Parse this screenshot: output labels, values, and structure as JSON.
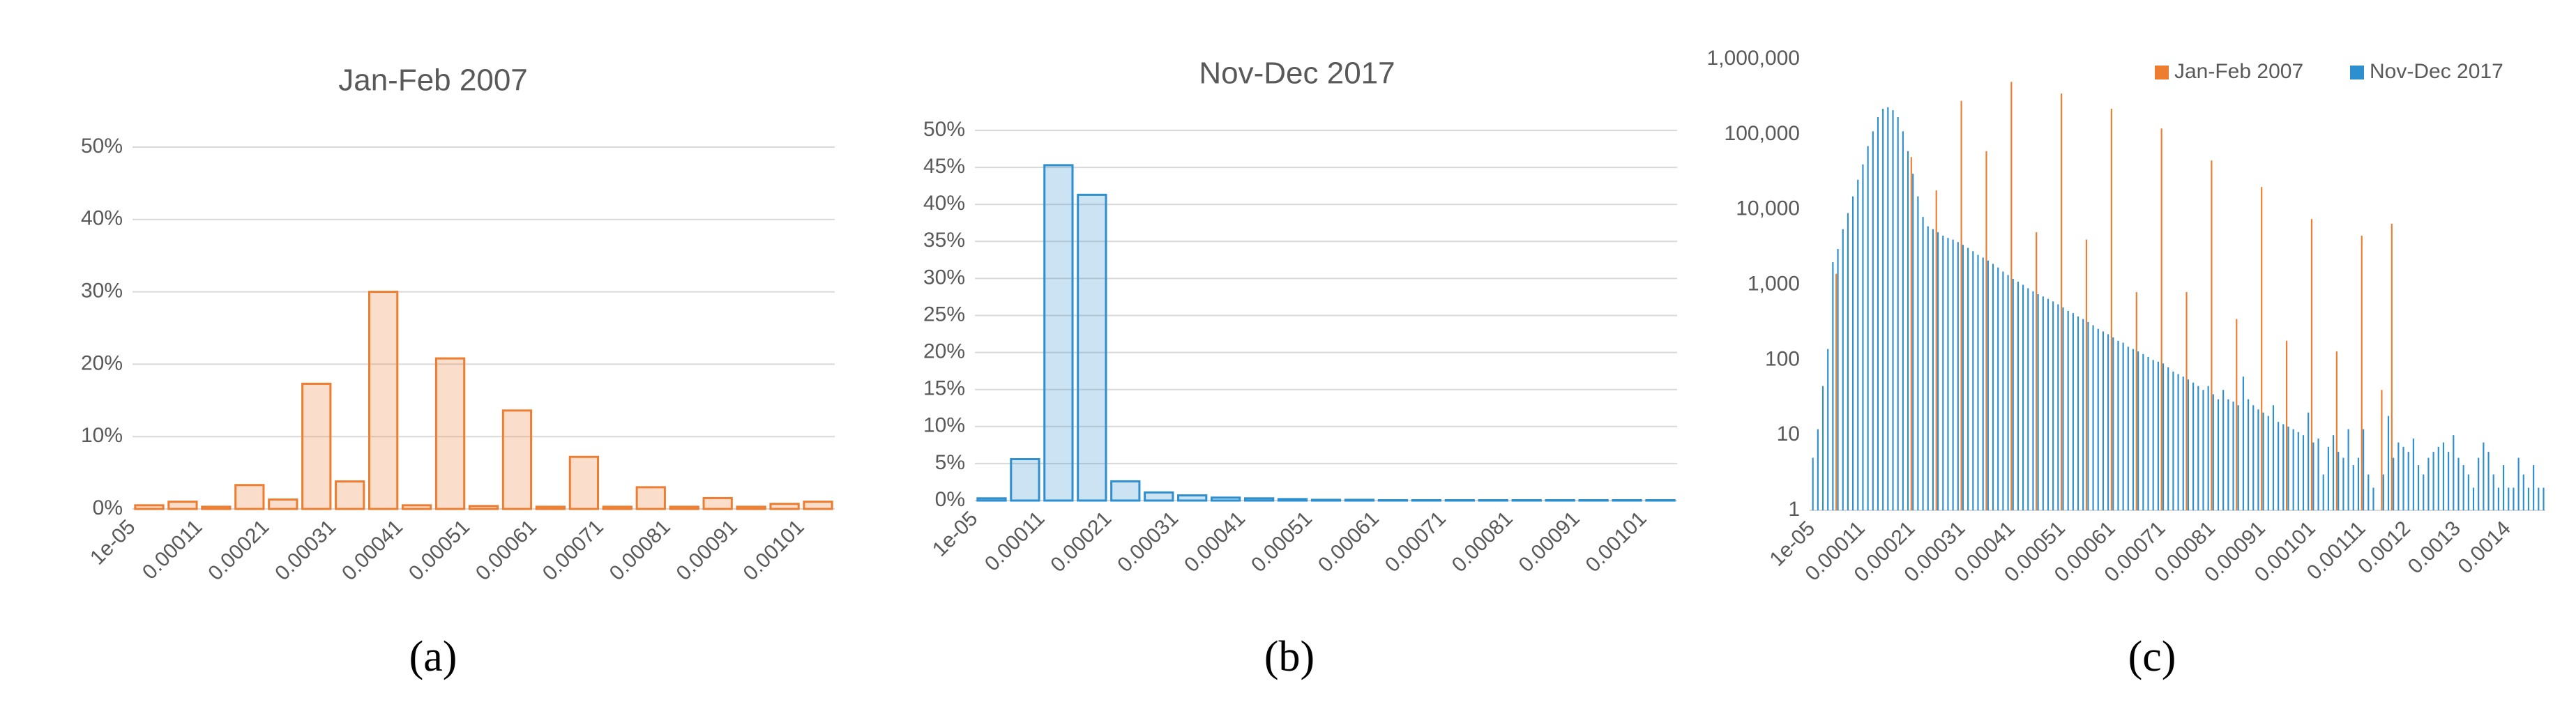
{
  "chart_data": [
    {
      "type": "bar",
      "title": "Jan-Feb 2007",
      "caption": "(a)",
      "color": "#ed7d31",
      "grid": true,
      "categories": [
        "1e-05",
        null,
        "0.00011",
        null,
        "0.00021",
        null,
        "0.00031",
        null,
        "0.00041",
        null,
        "0.00051",
        null,
        "0.00061",
        null,
        "0.00071",
        null,
        "0.00081",
        null,
        "0.00091",
        null,
        "0.00101"
      ],
      "values": [
        0.5,
        1.0,
        0.3,
        3.3,
        1.3,
        17.3,
        3.8,
        30,
        0.5,
        20.8,
        0.4,
        13.6,
        0.3,
        7.2,
        0.3,
        3,
        0.3,
        1.5,
        0.3,
        0.7,
        1.0
      ],
      "ylim": [
        0,
        50
      ],
      "yticks": [
        {
          "value": 0,
          "label": "0%"
        },
        {
          "value": 10,
          "label": "10%"
        },
        {
          "value": 20,
          "label": "20%"
        },
        {
          "value": 30,
          "label": "30%"
        },
        {
          "value": 40,
          "label": "40%"
        },
        {
          "value": 50,
          "label": "50%"
        }
      ]
    },
    {
      "type": "bar",
      "title": "Nov-Dec 2017",
      "caption": "(b)",
      "color": "#2e8fcf",
      "grid": true,
      "categories": [
        "1e-05",
        null,
        "0.00011",
        null,
        "0.00021",
        null,
        "0.00031",
        null,
        "0.00041",
        null,
        "0.00051",
        null,
        "0.00061",
        null,
        "0.00071",
        null,
        "0.00081",
        null,
        "0.00091",
        null,
        "0.00101"
      ],
      "values": [
        0.3,
        5.6,
        45.3,
        41.3,
        2.6,
        1.1,
        0.7,
        0.4,
        0.3,
        0.2,
        0.1,
        0.1,
        0.05,
        0.05,
        0.05,
        0.05,
        0.05,
        0.05,
        0.05,
        0.05,
        0.05
      ],
      "ylim": [
        0,
        50
      ],
      "yticks": [
        {
          "value": 0,
          "label": "0%"
        },
        {
          "value": 5,
          "label": "5%"
        },
        {
          "value": 10,
          "label": "10%"
        },
        {
          "value": 15,
          "label": "15%"
        },
        {
          "value": 20,
          "label": "20%"
        },
        {
          "value": 25,
          "label": "25%"
        },
        {
          "value": 30,
          "label": "30%"
        },
        {
          "value": 35,
          "label": "35%"
        },
        {
          "value": 40,
          "label": "40%"
        },
        {
          "value": 45,
          "label": "45%"
        },
        {
          "value": 50,
          "label": "50%"
        }
      ]
    },
    {
      "type": "bar",
      "caption": "(c)",
      "log": true,
      "grid": false,
      "legend": "top-right",
      "categories": [
        "1e-05",
        null,
        null,
        null,
        null,
        null,
        null,
        null,
        null,
        null,
        "0.00011",
        null,
        null,
        null,
        null,
        null,
        null,
        null,
        null,
        null,
        "0.00021",
        null,
        null,
        null,
        null,
        null,
        null,
        null,
        null,
        null,
        "0.00031",
        null,
        null,
        null,
        null,
        null,
        null,
        null,
        null,
        null,
        "0.00041",
        null,
        null,
        null,
        null,
        null,
        null,
        null,
        null,
        null,
        "0.00051",
        null,
        null,
        null,
        null,
        null,
        null,
        null,
        null,
        null,
        "0.00061",
        null,
        null,
        null,
        null,
        null,
        null,
        null,
        null,
        null,
        "0.00071",
        null,
        null,
        null,
        null,
        null,
        null,
        null,
        null,
        null,
        "0.00081",
        null,
        null,
        null,
        null,
        null,
        null,
        null,
        null,
        null,
        "0.00091",
        null,
        null,
        null,
        null,
        null,
        null,
        null,
        null,
        null,
        "0.00101",
        null,
        null,
        null,
        null,
        null,
        null,
        null,
        null,
        null,
        "0.00111",
        null,
        null,
        null,
        null,
        null,
        null,
        null,
        null,
        "0.0012",
        null,
        null,
        null,
        null,
        null,
        null,
        null,
        null,
        null,
        "0.0013",
        null,
        null,
        null,
        null,
        null,
        null,
        null,
        null,
        null,
        "0.0014",
        null,
        null,
        null,
        null,
        null,
        null,
        null
      ],
      "series": [
        {
          "name": "Jan-Feb 2007",
          "color": "#ed7d31",
          "values": [
            null,
            null,
            null,
            null,
            null,
            1400,
            null,
            null,
            null,
            null,
            null,
            null,
            null,
            null,
            null,
            null,
            null,
            null,
            null,
            null,
            50000,
            null,
            null,
            null,
            null,
            18000,
            null,
            null,
            null,
            null,
            280000,
            null,
            null,
            null,
            null,
            60000,
            null,
            null,
            null,
            null,
            500000,
            null,
            null,
            null,
            null,
            5000,
            null,
            null,
            null,
            null,
            350000,
            null,
            null,
            null,
            null,
            4000,
            null,
            null,
            null,
            null,
            220000,
            null,
            null,
            null,
            null,
            800,
            null,
            null,
            null,
            null,
            120000,
            null,
            null,
            null,
            null,
            800,
            null,
            null,
            null,
            null,
            45000,
            null,
            null,
            null,
            null,
            350,
            null,
            null,
            null,
            null,
            20000,
            null,
            null,
            null,
            null,
            180,
            null,
            null,
            null,
            null,
            7500,
            null,
            null,
            null,
            null,
            130,
            null,
            null,
            null,
            null,
            4500,
            null,
            null,
            null,
            40,
            null,
            6500,
            null,
            null,
            null,
            null,
            null,
            null,
            null,
            null,
            null,
            null,
            null,
            null,
            null,
            null,
            null,
            null,
            null,
            null,
            null,
            null,
            null,
            null,
            null,
            null,
            null,
            null,
            null,
            null,
            null,
            null
          ]
        },
        {
          "name": "Nov-Dec 2017",
          "color": "#2e8fcf",
          "values": [
            5,
            12,
            45,
            140,
            2000,
            3000,
            5500,
            9000,
            15000,
            25000,
            40000,
            70000,
            110000,
            170000,
            220000,
            230000,
            210000,
            170000,
            110000,
            60000,
            30000,
            15000,
            8000,
            6000,
            5500,
            5000,
            4500,
            4200,
            4000,
            3700,
            3400,
            3100,
            2800,
            2500,
            2300,
            2100,
            1900,
            1700,
            1500,
            1350,
            1200,
            1100,
            1000,
            900,
            820,
            750,
            700,
            650,
            600,
            550,
            500,
            450,
            420,
            380,
            350,
            320,
            290,
            260,
            240,
            220,
            200,
            180,
            170,
            150,
            140,
            130,
            120,
            110,
            100,
            95,
            90,
            80,
            70,
            65,
            60,
            55,
            50,
            45,
            40,
            45,
            35,
            30,
            40,
            30,
            28,
            25,
            60,
            30,
            25,
            22,
            20,
            18,
            25,
            15,
            14,
            13,
            12,
            11,
            10,
            20,
            8,
            9,
            3,
            7,
            10,
            6,
            5,
            12,
            4,
            5,
            12,
            3,
            2,
            1,
            3,
            18,
            5,
            8,
            7,
            6,
            9,
            4,
            3,
            5,
            6,
            7,
            8,
            6,
            10,
            5,
            4,
            3,
            2,
            5,
            8,
            6,
            3,
            2,
            4,
            2,
            2,
            5,
            3,
            2,
            4,
            2,
            2
          ]
        }
      ],
      "ylim": [
        1,
        1000000
      ],
      "yticks": [
        1,
        10,
        100,
        {
          "value": 1000,
          "label": "1,000"
        },
        {
          "value": 10000,
          "label": "10,000"
        },
        {
          "value": 100000,
          "label": "100,000"
        },
        {
          "value": 1000000,
          "label": "1,000,000"
        }
      ]
    }
  ]
}
